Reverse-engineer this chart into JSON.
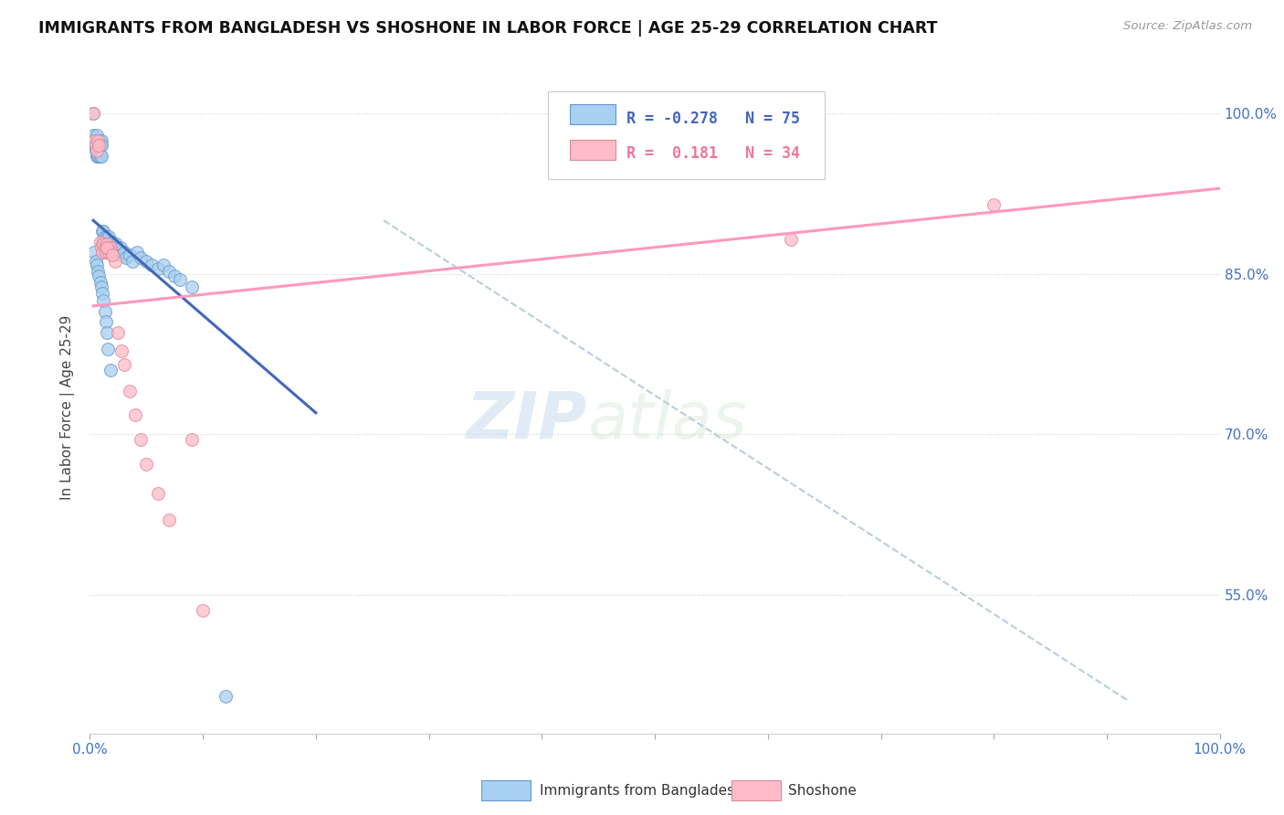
{
  "title": "IMMIGRANTS FROM BANGLADESH VS SHOSHONE IN LABOR FORCE | AGE 25-29 CORRELATION CHART",
  "source_text": "Source: ZipAtlas.com",
  "ylabel": "In Labor Force | Age 25-29",
  "xlim": [
    0.0,
    1.0
  ],
  "ylim": [
    0.42,
    1.03
  ],
  "y_tick_labels": [
    "55.0%",
    "70.0%",
    "85.0%",
    "100.0%"
  ],
  "y_tick_values": [
    0.55,
    0.7,
    0.85,
    1.0
  ],
  "color_blue_fill": "#A8D0F0",
  "color_blue_edge": "#6699CC",
  "color_pink_fill": "#FFBBC8",
  "color_pink_edge": "#DD8899",
  "color_blue_line": "#4466BB",
  "color_pink_line": "#FF99BB",
  "color_dashed": "#BBCCDD",
  "watermark_zip": "ZIP",
  "watermark_atlas": "atlas",
  "blue_scatter_x": [
    0.003,
    0.003,
    0.004,
    0.004,
    0.005,
    0.005,
    0.005,
    0.006,
    0.006,
    0.007,
    0.007,
    0.007,
    0.008,
    0.008,
    0.008,
    0.009,
    0.009,
    0.009,
    0.01,
    0.01,
    0.01,
    0.011,
    0.011,
    0.012,
    0.012,
    0.012,
    0.013,
    0.013,
    0.014,
    0.015,
    0.015,
    0.016,
    0.016,
    0.017,
    0.017,
    0.018,
    0.019,
    0.02,
    0.021,
    0.022,
    0.023,
    0.024,
    0.025,
    0.026,
    0.027,
    0.028,
    0.03,
    0.032,
    0.035,
    0.038,
    0.042,
    0.045,
    0.05,
    0.055,
    0.06,
    0.065,
    0.07,
    0.075,
    0.08,
    0.09,
    0.004,
    0.005,
    0.006,
    0.007,
    0.008,
    0.009,
    0.01,
    0.011,
    0.012,
    0.013,
    0.014,
    0.015,
    0.016,
    0.018,
    0.12
  ],
  "blue_scatter_y": [
    1.0,
    0.98,
    0.975,
    0.97,
    0.975,
    0.97,
    0.965,
    0.98,
    0.96,
    0.975,
    0.97,
    0.96,
    0.975,
    0.97,
    0.96,
    0.975,
    0.97,
    0.96,
    0.975,
    0.97,
    0.96,
    0.89,
    0.88,
    0.89,
    0.88,
    0.87,
    0.885,
    0.875,
    0.88,
    0.885,
    0.875,
    0.88,
    0.87,
    0.885,
    0.875,
    0.878,
    0.875,
    0.88,
    0.875,
    0.87,
    0.878,
    0.875,
    0.872,
    0.87,
    0.875,
    0.868,
    0.87,
    0.865,
    0.868,
    0.862,
    0.87,
    0.865,
    0.862,
    0.858,
    0.855,
    0.858,
    0.852,
    0.848,
    0.845,
    0.838,
    0.87,
    0.862,
    0.858,
    0.852,
    0.848,
    0.842,
    0.838,
    0.832,
    0.825,
    0.815,
    0.805,
    0.795,
    0.78,
    0.76,
    0.455
  ],
  "pink_scatter_x": [
    0.003,
    0.004,
    0.005,
    0.006,
    0.007,
    0.008,
    0.009,
    0.01,
    0.011,
    0.012,
    0.013,
    0.014,
    0.015,
    0.016,
    0.017,
    0.018,
    0.019,
    0.02,
    0.022,
    0.025,
    0.028,
    0.03,
    0.035,
    0.04,
    0.045,
    0.05,
    0.06,
    0.07,
    0.09,
    0.1,
    0.015,
    0.02,
    0.62,
    0.8
  ],
  "pink_scatter_y": [
    1.0,
    0.975,
    0.97,
    0.965,
    0.975,
    0.97,
    0.88,
    0.875,
    0.87,
    0.878,
    0.875,
    0.87,
    0.878,
    0.875,
    0.87,
    0.875,
    0.87,
    0.868,
    0.862,
    0.795,
    0.778,
    0.765,
    0.74,
    0.718,
    0.695,
    0.672,
    0.645,
    0.62,
    0.695,
    0.535,
    0.875,
    0.868,
    0.882,
    0.915
  ],
  "blue_line_x": [
    0.003,
    0.2
  ],
  "blue_line_y": [
    0.9,
    0.72
  ],
  "pink_line_x": [
    0.003,
    1.0
  ],
  "pink_line_y": [
    0.82,
    0.93
  ],
  "dashed_line_x": [
    0.26,
    0.92
  ],
  "dashed_line_y": [
    0.9,
    0.45
  ]
}
